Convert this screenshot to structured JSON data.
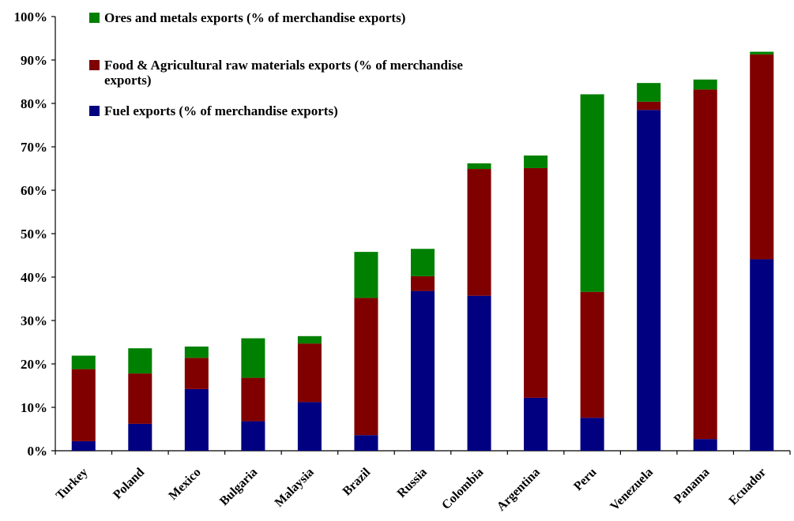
{
  "chart_data": {
    "type": "bar",
    "stacked": true,
    "title": "",
    "xlabel": "",
    "ylabel": "",
    "ylim": [
      0,
      100
    ],
    "y_ticks": [
      "0%",
      "10%",
      "20%",
      "30%",
      "40%",
      "50%",
      "60%",
      "70%",
      "80%",
      "90%",
      "100%"
    ],
    "categories": [
      "Turkey",
      "Poland",
      "Mexico",
      "Bulgaria",
      "Malaysia",
      "Brazil",
      "Russia",
      "Colombia",
      "Argentina",
      "Peru",
      "Venezuela",
      "Panama",
      "Ecuador"
    ],
    "series": [
      {
        "name": "Fuel exports (% of merchandise exports)",
        "color": "#000080",
        "values": [
          2.2,
          6.2,
          14.2,
          6.8,
          11.2,
          3.6,
          36.8,
          35.7,
          12.2,
          7.6,
          78.5,
          2.7,
          44.1
        ]
      },
      {
        "name": "Food & Agricultural raw materials exports (% of merchandise exports)",
        "color": "#800000",
        "values": [
          16.6,
          11.6,
          7.2,
          10.0,
          13.5,
          31.6,
          3.4,
          29.2,
          52.9,
          29.0,
          1.9,
          80.5,
          47.2
        ]
      },
      {
        "name": "Ores and metals exports (% of merchandise exports)",
        "color": "#008000",
        "values": [
          3.1,
          5.8,
          2.6,
          9.1,
          1.7,
          10.6,
          6.3,
          1.3,
          2.9,
          45.5,
          4.3,
          2.3,
          0.6
        ]
      }
    ],
    "legend": {
      "placement": "top-left",
      "entries": [
        {
          "label_lines": [
            "Ores and metals exports (% of merchandise exports)"
          ],
          "color": "#008000"
        },
        {
          "label_lines": [
            "Food & Agricultural raw materials exports (% of merchandise",
            "exports)"
          ],
          "color": "#800000"
        },
        {
          "label_lines": [
            "Fuel exports (% of merchandise exports)"
          ],
          "color": "#000080"
        }
      ]
    },
    "grid": false
  }
}
